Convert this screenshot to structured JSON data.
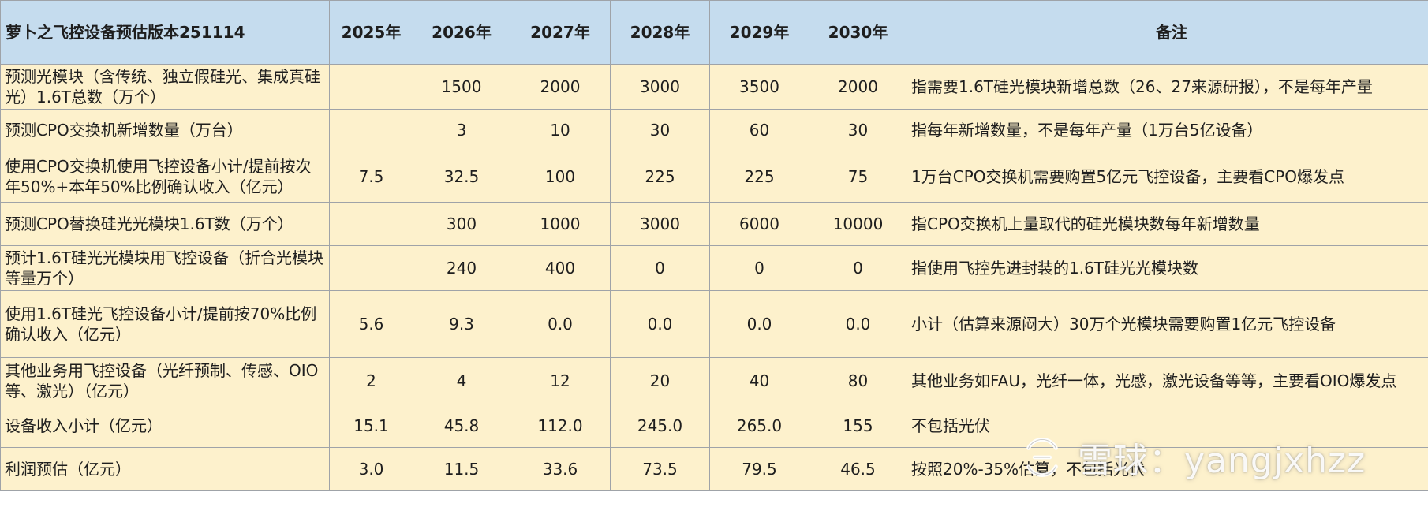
{
  "table": {
    "headers": [
      "萝卜之飞控设备预估版本251114",
      "2025年",
      "2026年",
      "2027年",
      "2028年",
      "2029年",
      "2030年",
      "备注"
    ],
    "rows": [
      {
        "item": "预测光模块（含传统、独立假硅光、集成真硅光）1.6T总数（万个）",
        "values": [
          "",
          "1500",
          "2000",
          "3000",
          "3500",
          "2000"
        ],
        "note": "指需要1.6T硅光模块新增总数（26、27来源研报），不是每年产量"
      },
      {
        "item": "预测CPO交换机新增数量（万台）",
        "values": [
          "",
          "3",
          "10",
          "30",
          "60",
          "30"
        ],
        "note": "指每年新增数量，不是每年产量（1万台5亿设备）"
      },
      {
        "item": "使用CPO交换机使用飞控设备小计/提前按次年50%+本年50%比例确认收入（亿元）",
        "values": [
          "7.5",
          "32.5",
          "100",
          "225",
          "225",
          "75"
        ],
        "note": "1万台CPO交换机需要购置5亿元飞控设备，主要看CPO爆发点"
      },
      {
        "item": "预测CPO替换硅光光模块1.6T数（万个）",
        "values": [
          "",
          "300",
          "1000",
          "3000",
          "6000",
          "10000"
        ],
        "note": "指CPO交换机上量取代的硅光模块数每年新增数量"
      },
      {
        "item": "预计1.6T硅光光模块用飞控设备（折合光模块等量万个）",
        "values": [
          "",
          "240",
          "400",
          "0",
          "0",
          "0"
        ],
        "note": "指使用飞控先进封装的1.6T硅光光模块数"
      },
      {
        "item": "使用1.6T硅光飞控设备小计/提前按70%比例确认收入（亿元）",
        "values": [
          "5.6",
          "9.3",
          "0.0",
          "0.0",
          "0.0",
          "0.0"
        ],
        "note": "小计（估算来源闷大）30万个光模块需要购置1亿元飞控设备"
      },
      {
        "item": "其他业务用飞控设备（光纤预制、传感、OIO等、激光）（亿元）",
        "values": [
          "2",
          "4",
          "12",
          "20",
          "40",
          "80"
        ],
        "note": "其他业务如FAU，光纤一体，光感，激光设备等等，主要看OIO爆发点"
      },
      {
        "item": "设备收入小计（亿元）",
        "values": [
          "15.1",
          "45.8",
          "112.0",
          "245.0",
          "265.0",
          "155"
        ],
        "note": "不包括光伏"
      },
      {
        "item": "利润预估（亿元）",
        "values": [
          "3.0",
          "11.5",
          "33.6",
          "73.5",
          "79.5",
          "46.5"
        ],
        "note": "按照20%-35%估算，不包括光伏"
      }
    ]
  },
  "watermark": {
    "text": "雪球：yangjxhzz",
    "icon": "xueqiu-logo-icon"
  }
}
